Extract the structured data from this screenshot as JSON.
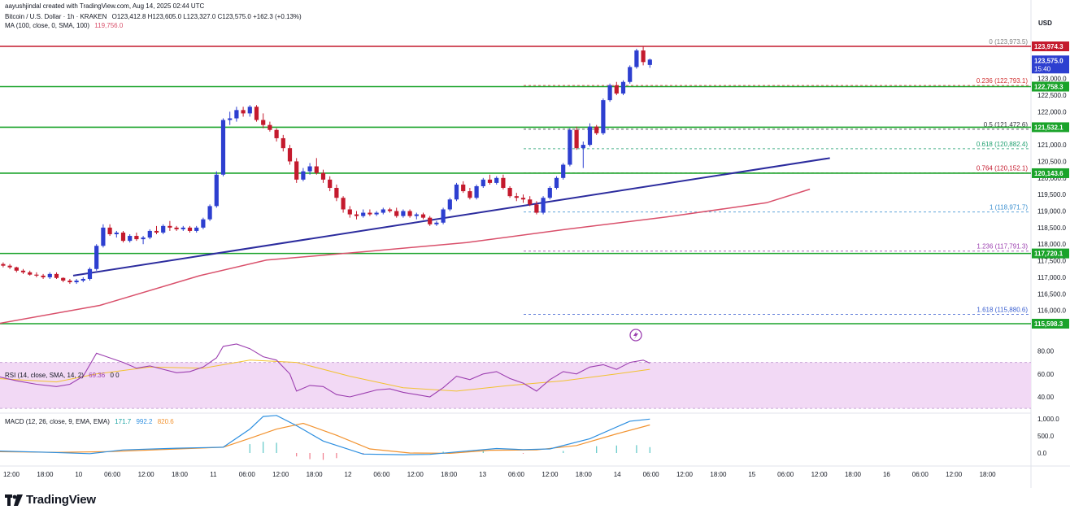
{
  "header": {
    "credit": "aayushjindal created with TradingView.com, Aug 14, 2025 02:44 UTC",
    "symbol": "Bitcoin / U.S. Dollar · 1h · KRAKEN",
    "ohlc": "O123,412.8  H123,605.0  L123,327.0  C123,575.0  +162.3 (+0.13%)",
    "ma_label": "MA (100, close, 0, SMA, 100)",
    "ma_value": "119,756.0",
    "currency": "USD"
  },
  "colors": {
    "up": "#2d3fd0",
    "down": "#c41a2d",
    "support": "#1aa32a",
    "top_line": "#c41a2d",
    "trend": "#2c2c9e",
    "ma": "#d9506b",
    "rsi": "#9c3fb0",
    "rsi_band": "#f2d9f5",
    "macd": "#2d8fe0",
    "signal": "#f29330"
  },
  "chart_data": {
    "type": "candlestick",
    "price_axis": {
      "ylim": [
        115598.3,
        123974.3
      ],
      "ticks": [
        "123,000.0",
        "122,500.0",
        "122,000.0",
        "121,500.0",
        "121,000.0",
        "120,500.0",
        "120,000.0",
        "119,500.0",
        "119,000.0",
        "118,500.0",
        "118,000.0",
        "117,500.0",
        "117,000.0",
        "116,500.0",
        "116,000.0"
      ]
    },
    "time_axis": [
      "12:00",
      "18:00",
      "10",
      "06:00",
      "12:00",
      "18:00",
      "11",
      "06:00",
      "12:00",
      "18:00",
      "12",
      "06:00",
      "12:00",
      "18:00",
      "13",
      "06:00",
      "12:00",
      "18:00",
      "14",
      "06:00",
      "12:00",
      "18:00",
      "15",
      "06:00",
      "12:00",
      "18:00",
      "16",
      "06:00",
      "12:00",
      "18:00"
    ],
    "horizontal_levels": [
      {
        "price": 123974.3,
        "label": "123,974.3",
        "kind": "resistance"
      },
      {
        "price": 122758.3,
        "label": "122,758.3",
        "kind": "support"
      },
      {
        "price": 121532.1,
        "label": "121,532.1",
        "kind": "support"
      },
      {
        "price": 120143.6,
        "label": "120,143.6",
        "kind": "support"
      },
      {
        "price": 117720.1,
        "label": "117,720.1",
        "kind": "support"
      },
      {
        "price": 115598.3,
        "label": "115,598.3",
        "kind": "support"
      }
    ],
    "current_price": {
      "price": 123575.0,
      "label": "123,575.0",
      "countdown": "15:40"
    },
    "fibonacci": [
      {
        "price": 123973.5,
        "label": "0 (123,973.5)",
        "color": "#808080"
      },
      {
        "price": 122793.1,
        "label": "0.236 (122,793.1)",
        "color": "#d03030"
      },
      {
        "price": 121472.6,
        "label": "0.5 (121,472.6)",
        "color": "#30303a"
      },
      {
        "price": 120882.4,
        "label": "0.618 (120,882.4)",
        "color": "#20a070"
      },
      {
        "price": 120152.1,
        "label": "0.764 (120,152.1)",
        "color": "#c41a2d"
      },
      {
        "price": 118971.7,
        "label": "1 (118,971.7)",
        "color": "#3a8fd0"
      },
      {
        "price": 117791.3,
        "label": "1.236 (117,791.3)",
        "color": "#9c3fb0"
      },
      {
        "price": 115880.6,
        "label": "1.618 (115,880.6)",
        "color": "#3a5fd0"
      }
    ],
    "trendline": [
      [
        -58,
        117050
      ],
      [
        169,
        120600
      ]
    ],
    "ma_line": [
      [
        -81,
        115590
      ],
      [
        -50,
        116150
      ],
      [
        -20,
        117050
      ],
      [
        0,
        117520
      ],
      [
        30,
        117780
      ],
      [
        60,
        118050
      ],
      [
        90,
        118450
      ],
      [
        120,
        118820
      ],
      [
        150,
        119250
      ],
      [
        163,
        119660
      ]
    ],
    "candles": [
      [
        -81,
        117500,
        117600,
        117350,
        117400
      ],
      [
        -79,
        117400,
        117450,
        117300,
        117350
      ],
      [
        -77,
        117350,
        117400,
        117250,
        117300
      ],
      [
        -75,
        117300,
        117320,
        117150,
        117200
      ],
      [
        -73,
        117200,
        117250,
        117100,
        117150
      ],
      [
        -71,
        117150,
        117200,
        117050,
        117080
      ],
      [
        -69,
        117080,
        117150,
        117000,
        117050
      ],
      [
        -67,
        117050,
        117100,
        116950,
        117000
      ],
      [
        -65,
        117000,
        117150,
        116950,
        117100
      ],
      [
        -63,
        117100,
        117150,
        116950,
        116980
      ],
      [
        -61,
        116980,
        117000,
        116850,
        116900
      ],
      [
        -59,
        116900,
        116950,
        116800,
        116850
      ],
      [
        -57,
        116850,
        116950,
        116800,
        116900
      ],
      [
        -55,
        116900,
        117000,
        116850,
        116950
      ],
      [
        -53,
        116950,
        117300,
        116900,
        117250
      ],
      [
        -51,
        117250,
        118000,
        117200,
        117950
      ],
      [
        -49,
        117950,
        118600,
        117900,
        118500
      ],
      [
        -47,
        118500,
        118600,
        118250,
        118300
      ],
      [
        -45,
        118300,
        118400,
        118200,
        118350
      ],
      [
        -43,
        118350,
        118400,
        118050,
        118100
      ],
      [
        -41,
        118100,
        118300,
        118050,
        118250
      ],
      [
        -39,
        118250,
        118350,
        118100,
        118150
      ],
      [
        -37,
        118150,
        118250,
        118000,
        118200
      ],
      [
        -35,
        118200,
        118450,
        118150,
        118400
      ],
      [
        -33,
        118400,
        118550,
        118300,
        118350
      ],
      [
        -31,
        118350,
        118600,
        118300,
        118550
      ],
      [
        -29,
        118550,
        118700,
        118400,
        118500
      ],
      [
        -27,
        118500,
        118550,
        118400,
        118450
      ],
      [
        -25,
        118450,
        118550,
        118400,
        118500
      ],
      [
        -23,
        118500,
        118550,
        118350,
        118400
      ],
      [
        -21,
        118400,
        118550,
        118350,
        118500
      ],
      [
        -19,
        118500,
        118800,
        118450,
        118750
      ],
      [
        -17,
        118750,
        119200,
        118700,
        119150
      ],
      [
        -15,
        119150,
        120200,
        119100,
        120100
      ],
      [
        -13,
        120100,
        121800,
        120050,
        121750
      ],
      [
        -11,
        121750,
        122000,
        121600,
        121800
      ],
      [
        -9,
        121800,
        122150,
        121700,
        122050
      ],
      [
        -7,
        122050,
        122150,
        121850,
        121950
      ],
      [
        -5,
        121950,
        122200,
        121850,
        122150
      ],
      [
        -3,
        122150,
        122200,
        121700,
        121750
      ],
      [
        -1,
        121750,
        121950,
        121500,
        121600
      ],
      [
        1,
        121600,
        121700,
        121400,
        121450
      ],
      [
        3,
        121450,
        121500,
        121100,
        121200
      ],
      [
        5,
        121200,
        121300,
        120800,
        120900
      ],
      [
        7,
        120900,
        121000,
        120400,
        120500
      ],
      [
        9,
        120500,
        120600,
        119850,
        119950
      ],
      [
        11,
        119950,
        120300,
        119900,
        120200
      ],
      [
        13,
        120200,
        120450,
        120100,
        120350
      ],
      [
        15,
        120350,
        120600,
        120100,
        120150
      ],
      [
        17,
        120150,
        120250,
        119850,
        119950
      ],
      [
        19,
        119950,
        120050,
        119600,
        119700
      ],
      [
        21,
        119700,
        119800,
        119300,
        119400
      ],
      [
        23,
        119400,
        119450,
        118950,
        119050
      ],
      [
        25,
        119050,
        119150,
        118800,
        118900
      ],
      [
        27,
        118900,
        119000,
        118750,
        118850
      ],
      [
        29,
        118850,
        119050,
        118800,
        118950
      ],
      [
        31,
        118950,
        119050,
        118850,
        118900
      ],
      [
        33,
        118900,
        119000,
        118850,
        118950
      ],
      [
        35,
        118950,
        119100,
        118900,
        119050
      ],
      [
        37,
        119050,
        119100,
        118950,
        119000
      ],
      [
        39,
        119000,
        119100,
        118800,
        118850
      ],
      [
        41,
        118850,
        119050,
        118800,
        119000
      ],
      [
        43,
        119000,
        119050,
        118800,
        118850
      ],
      [
        45,
        118850,
        118950,
        118750,
        118900
      ],
      [
        47,
        118900,
        118950,
        118750,
        118800
      ],
      [
        49,
        118800,
        118850,
        118550,
        118600
      ],
      [
        51,
        118600,
        118700,
        118550,
        118650
      ],
      [
        53,
        118650,
        119100,
        118600,
        119050
      ],
      [
        55,
        119050,
        119400,
        119000,
        119350
      ],
      [
        57,
        119350,
        119850,
        119300,
        119800
      ],
      [
        59,
        119800,
        119900,
        119550,
        119600
      ],
      [
        61,
        119600,
        119700,
        119350,
        119400
      ],
      [
        63,
        119400,
        119800,
        119350,
        119750
      ],
      [
        65,
        119750,
        120000,
        119700,
        119950
      ],
      [
        67,
        119950,
        120100,
        119800,
        119850
      ],
      [
        69,
        119850,
        120050,
        119800,
        120000
      ],
      [
        71,
        120000,
        120100,
        119650,
        119700
      ],
      [
        73,
        119700,
        119750,
        119400,
        119450
      ],
      [
        75,
        119450,
        119550,
        119300,
        119400
      ],
      [
        77,
        119400,
        119500,
        119250,
        119350
      ],
      [
        79,
        119350,
        119450,
        119150,
        119200
      ],
      [
        81,
        119200,
        119300,
        118900,
        118950
      ],
      [
        83,
        118950,
        119450,
        118900,
        119400
      ],
      [
        85,
        119400,
        119750,
        119350,
        119700
      ],
      [
        87,
        119700,
        120050,
        119650,
        120000
      ],
      [
        89,
        120000,
        120450,
        119950,
        120400
      ],
      [
        91,
        120400,
        121500,
        120350,
        121450
      ],
      [
        93,
        121450,
        121550,
        120850,
        120900
      ],
      [
        95,
        120900,
        121100,
        120300,
        121000
      ],
      [
        97,
        121000,
        121650,
        120950,
        121550
      ],
      [
        99,
        121550,
        121600,
        121300,
        121350
      ],
      [
        101,
        121350,
        122400,
        121300,
        122350
      ],
      [
        103,
        122350,
        122850,
        122300,
        122800
      ],
      [
        105,
        122800,
        122900,
        122500,
        122550
      ],
      [
        107,
        122550,
        122950,
        122500,
        122900
      ],
      [
        109,
        122900,
        123400,
        122850,
        123350
      ],
      [
        111,
        123350,
        123900,
        123300,
        123850
      ],
      [
        113,
        123850,
        123974,
        123400,
        123500
      ],
      [
        115,
        123412.8,
        123605,
        123327,
        123575
      ]
    ]
  },
  "rsi": {
    "label": "RSI (14, close, SMA, 14, 2)",
    "value": "69.36",
    "extra": "0  0",
    "ticks": [
      "80.00",
      "60.00",
      "40.00"
    ],
    "ylim": [
      30,
      90
    ],
    "upper": 70,
    "lower": 30,
    "series": [
      [
        -81,
        58
      ],
      [
        -75,
        54
      ],
      [
        -69,
        51
      ],
      [
        -63,
        49
      ],
      [
        -59,
        51
      ],
      [
        -55,
        58
      ],
      [
        -51,
        78
      ],
      [
        -47,
        74
      ],
      [
        -43,
        70
      ],
      [
        -39,
        65
      ],
      [
        -35,
        67
      ],
      [
        -31,
        64
      ],
      [
        -27,
        61
      ],
      [
        -23,
        62
      ],
      [
        -19,
        66
      ],
      [
        -15,
        74
      ],
      [
        -13,
        84
      ],
      [
        -9,
        86
      ],
      [
        -5,
        82
      ],
      [
        -1,
        75
      ],
      [
        3,
        72
      ],
      [
        7,
        60
      ],
      [
        9,
        45
      ],
      [
        13,
        50
      ],
      [
        17,
        49
      ],
      [
        21,
        42
      ],
      [
        25,
        40
      ],
      [
        29,
        43
      ],
      [
        33,
        46
      ],
      [
        37,
        47
      ],
      [
        41,
        44
      ],
      [
        45,
        42
      ],
      [
        49,
        40
      ],
      [
        53,
        48
      ],
      [
        57,
        58
      ],
      [
        61,
        55
      ],
      [
        65,
        60
      ],
      [
        69,
        62
      ],
      [
        73,
        56
      ],
      [
        77,
        52
      ],
      [
        81,
        45
      ],
      [
        85,
        55
      ],
      [
        89,
        62
      ],
      [
        93,
        60
      ],
      [
        97,
        66
      ],
      [
        101,
        68
      ],
      [
        105,
        64
      ],
      [
        109,
        70
      ],
      [
        113,
        72
      ],
      [
        115,
        69.36
      ]
    ],
    "signal": [
      [
        -81,
        56
      ],
      [
        -63,
        53
      ],
      [
        -51,
        60
      ],
      [
        -35,
        66
      ],
      [
        -19,
        65
      ],
      [
        -5,
        72
      ],
      [
        9,
        70
      ],
      [
        25,
        58
      ],
      [
        41,
        48
      ],
      [
        57,
        45
      ],
      [
        73,
        50
      ],
      [
        89,
        54
      ],
      [
        105,
        60
      ],
      [
        115,
        64
      ]
    ]
  },
  "macd": {
    "label": "MACD (12, 26, close, 9, EMA, EMA)",
    "hist": "171.7",
    "macd_value": "992.2",
    "signal_value": "820.6",
    "ticks": [
      "1,000.0",
      "500.0",
      "0.0"
    ],
    "ylim": [
      -200,
      1100
    ],
    "macd_line": [
      [
        -81,
        60
      ],
      [
        -65,
        20
      ],
      [
        -53,
        -20
      ],
      [
        -43,
        90
      ],
      [
        -27,
        140
      ],
      [
        -13,
        170
      ],
      [
        -5,
        700
      ],
      [
        -1,
        1070
      ],
      [
        3,
        1100
      ],
      [
        9,
        800
      ],
      [
        17,
        350
      ],
      [
        29,
        -30
      ],
      [
        41,
        -50
      ],
      [
        49,
        -40
      ],
      [
        57,
        30
      ],
      [
        69,
        130
      ],
      [
        77,
        100
      ],
      [
        85,
        120
      ],
      [
        97,
        420
      ],
      [
        109,
        930
      ],
      [
        115,
        992.2
      ]
    ],
    "signal_line": [
      [
        -81,
        40
      ],
      [
        -63,
        20
      ],
      [
        -47,
        40
      ],
      [
        -29,
        110
      ],
      [
        -13,
        170
      ],
      [
        -5,
        430
      ],
      [
        3,
        700
      ],
      [
        11,
        870
      ],
      [
        21,
        520
      ],
      [
        31,
        120
      ],
      [
        43,
        0
      ],
      [
        55,
        -10
      ],
      [
        67,
        80
      ],
      [
        81,
        90
      ],
      [
        93,
        220
      ],
      [
        105,
        560
      ],
      [
        115,
        820.6
      ]
    ],
    "histogram": [
      [
        -5,
        260
      ],
      [
        -1,
        330
      ],
      [
        3,
        300
      ],
      [
        9,
        -100
      ],
      [
        13,
        -180
      ],
      [
        17,
        -200
      ],
      [
        21,
        -150
      ],
      [
        29,
        -40
      ],
      [
        53,
        40
      ],
      [
        65,
        60
      ],
      [
        77,
        -20
      ],
      [
        89,
        60
      ],
      [
        99,
        200
      ],
      [
        105,
        220
      ],
      [
        111,
        230
      ],
      [
        115,
        171.7
      ]
    ]
  },
  "brand": "TradingView"
}
